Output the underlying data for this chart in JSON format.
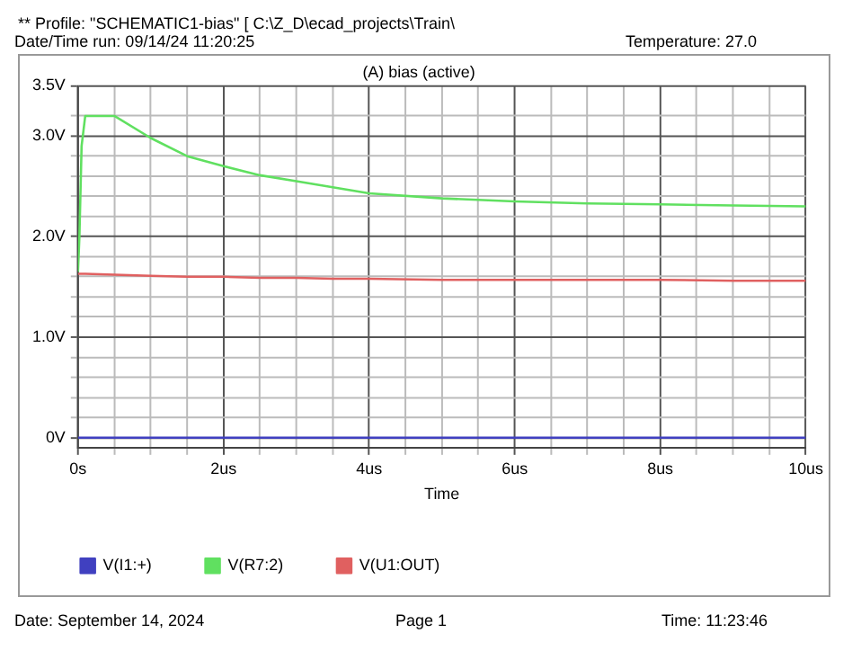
{
  "chart_data": {
    "type": "line",
    "title": "(A) bias (active)",
    "xlabel": "Time",
    "annotations": [
      "** Profile: \"SCHEMATIC1-bias\"  [ C:\\Z_D\\ecad_projects\\Train\\",
      "Date/Time run: 09/14/24 11:20:25",
      "Temperature: 27.0",
      "Date: September 14, 2024",
      "Page 1",
      "Time: 11:23:46"
    ],
    "x": [
      0,
      0.02,
      0.05,
      0.1,
      0.5,
      1,
      1.5,
      2,
      2.5,
      3,
      3.5,
      4,
      5,
      6,
      7,
      8,
      9,
      10
    ],
    "series": [
      {
        "name": "V(I1:+)",
        "color": "#4040c0",
        "values": [
          0,
          0,
          0,
          0,
          0,
          0,
          0,
          0,
          0,
          0,
          0,
          0,
          0,
          0,
          0,
          0,
          0,
          0
        ]
      },
      {
        "name": "V(R7:2)",
        "color": "#60e060",
        "values": [
          1.65,
          2.0,
          2.9,
          3.2,
          3.2,
          2.98,
          2.8,
          2.7,
          2.61,
          2.55,
          2.49,
          2.43,
          2.38,
          2.35,
          2.33,
          2.32,
          2.31,
          2.3
        ]
      },
      {
        "name": "V(U1:OUT)",
        "color": "#e06060",
        "values": [
          1.63,
          1.63,
          1.63,
          1.63,
          1.62,
          1.61,
          1.6,
          1.6,
          1.59,
          1.59,
          1.58,
          1.58,
          1.57,
          1.57,
          1.57,
          1.57,
          1.56,
          1.56
        ]
      }
    ],
    "xlim": [
      0,
      10
    ],
    "xticks": [
      {
        "value": 0,
        "label": "0s"
      },
      {
        "value": 0.5,
        "label": null
      },
      {
        "value": 1,
        "label": null
      },
      {
        "value": 1.5,
        "label": null
      },
      {
        "value": 2,
        "label": "2us"
      },
      {
        "value": 2.5,
        "label": null
      },
      {
        "value": 3,
        "label": null
      },
      {
        "value": 3.5,
        "label": null
      },
      {
        "value": 4,
        "label": "4us"
      },
      {
        "value": 4.5,
        "label": null
      },
      {
        "value": 5,
        "label": null
      },
      {
        "value": 5.5,
        "label": null
      },
      {
        "value": 6,
        "label": "6us"
      },
      {
        "value": 6.5,
        "label": null
      },
      {
        "value": 7,
        "label": null
      },
      {
        "value": 7.5,
        "label": null
      },
      {
        "value": 8,
        "label": "8us"
      },
      {
        "value": 8.5,
        "label": null
      },
      {
        "value": 9,
        "label": null
      },
      {
        "value": 9.5,
        "label": null
      },
      {
        "value": 10,
        "label": "10us"
      }
    ],
    "ylim": [
      -0.1,
      3.5
    ],
    "yticks": [
      {
        "value": 0,
        "label": "0V"
      },
      {
        "value": 0.2,
        "label": null
      },
      {
        "value": 0.4,
        "label": null
      },
      {
        "value": 0.6,
        "label": null
      },
      {
        "value": 0.8,
        "label": null
      },
      {
        "value": 1,
        "label": "1.0V"
      },
      {
        "value": 1.2,
        "label": null
      },
      {
        "value": 1.4,
        "label": null
      },
      {
        "value": 1.6,
        "label": null
      },
      {
        "value": 1.8,
        "label": null
      },
      {
        "value": 2,
        "label": "2.0V"
      },
      {
        "value": 2.2,
        "label": null
      },
      {
        "value": 2.4,
        "label": null
      },
      {
        "value": 2.6,
        "label": null
      },
      {
        "value": 2.8,
        "label": null
      },
      {
        "value": 3,
        "label": "3.0V"
      },
      {
        "value": 3.2,
        "label": null
      },
      {
        "value": 3.5,
        "label": "3.5V"
      }
    ],
    "grid": true,
    "legend": "bottom",
    "marker": "none",
    "line_style": "solid"
  }
}
